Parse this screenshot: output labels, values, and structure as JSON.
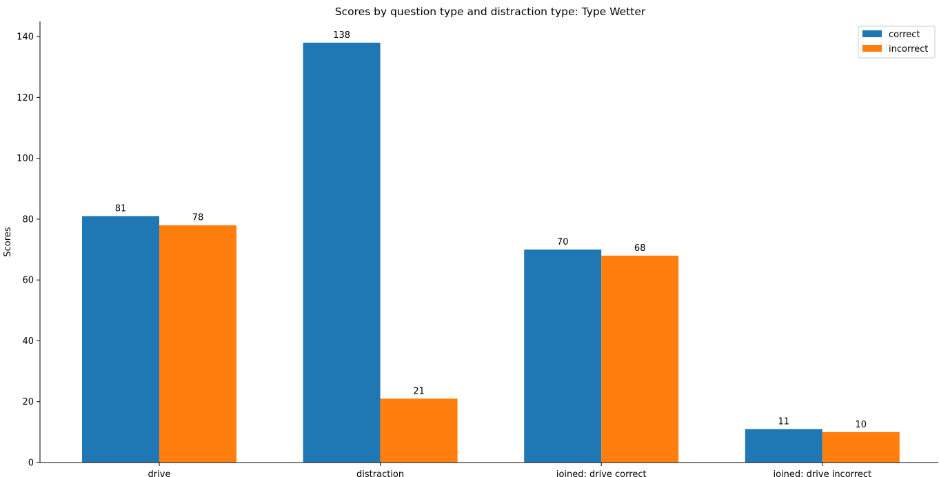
{
  "chart_data": {
    "type": "bar",
    "title": "Scores by question type and distraction type: Type Wetter",
    "xlabel": "",
    "ylabel": "Scores",
    "categories": [
      "drive",
      "distraction",
      "joined: drive correct",
      "joined: drive incorrect"
    ],
    "series": [
      {
        "name": "correct",
        "color": "#1f77b4",
        "values": [
          81,
          138,
          70,
          11
        ]
      },
      {
        "name": "incorrect",
        "color": "#ff7f0e",
        "values": [
          78,
          21,
          68,
          10
        ]
      }
    ],
    "ylim": [
      0,
      145
    ],
    "yticks": [
      0,
      20,
      40,
      60,
      80,
      100,
      120,
      140
    ],
    "grid": false,
    "legend": "top-right"
  }
}
